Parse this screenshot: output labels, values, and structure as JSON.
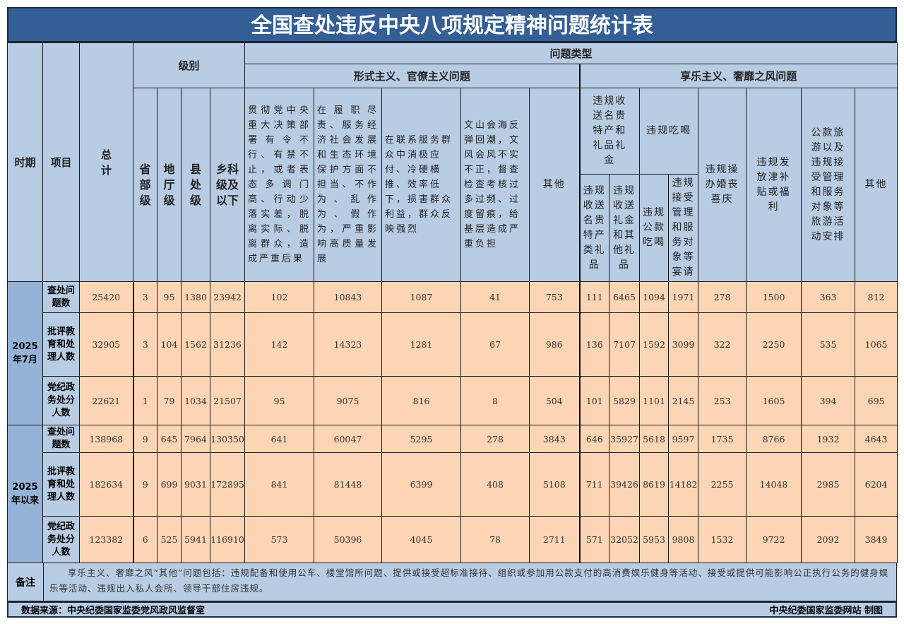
{
  "title": "全国查处违反中央八项规定精神问题统计表",
  "header": {
    "period": "时期",
    "item": "项目",
    "total": "总计",
    "level": "级别",
    "levels": [
      "省部级",
      "地厅级",
      "县处级",
      "乡科级及以下"
    ],
    "problem_type": "问题类型",
    "group1": "形式主义、官僚主义问题",
    "group1_cols": [
      "贯彻党中央重大决策部署有令不行、有禁不止，或者表态多调门高、行动少落实差，脱离实际、脱离群众，造成严重后果",
      "在履职尽责、服务经济社会发展和生态环境保护方面不担当、不作为、乱作为、假作为，严重影响高质量发展",
      "在联系服务群众中消极应付、冷硬横推、效率低下，损害群众利益，群众反映强烈",
      "文山会海反弹回潮，文风会风不实不正，督查检查考核过多过频、过度留痕，给基层造成严重负担",
      "其他"
    ],
    "group2": "享乐主义、奢靡之风问题",
    "gifts": "违规收送名贵特产和礼品礼金",
    "gifts_sub": [
      "违规收送名贵特产类礼品",
      "违规收送礼金和其他礼品"
    ],
    "dining": "违规吃喝",
    "dining_sub": [
      "违规公款吃喝",
      "违规接受管理和服务对象等宴请"
    ],
    "group2_cols": [
      "违规操办婚丧喜庆",
      "违规发放津补贴或福利",
      "公款旅游以及违规接受管理和服务对象等旅游活动安排",
      "其他"
    ]
  },
  "periods": [
    {
      "label": "2025年7月",
      "rows": [
        {
          "item": "查处问题数",
          "values": [
            "25420",
            "3",
            "95",
            "1380",
            "23942",
            "102",
            "10843",
            "1087",
            "41",
            "753",
            "111",
            "6465",
            "1094",
            "1971",
            "278",
            "1500",
            "363",
            "812"
          ]
        },
        {
          "item": "批评教育和处理人数",
          "values": [
            "32905",
            "3",
            "104",
            "1562",
            "31236",
            "142",
            "14323",
            "1281",
            "67",
            "986",
            "136",
            "7107",
            "1592",
            "3099",
            "322",
            "2250",
            "535",
            "1065"
          ]
        },
        {
          "item": "党纪政务处分人数",
          "values": [
            "22621",
            "1",
            "79",
            "1034",
            "21507",
            "95",
            "9075",
            "816",
            "8",
            "504",
            "101",
            "5829",
            "1101",
            "2145",
            "253",
            "1605",
            "394",
            "695"
          ]
        }
      ]
    },
    {
      "label": "2025年以来",
      "rows": [
        {
          "item": "查处问题数",
          "values": [
            "138968",
            "9",
            "645",
            "7964",
            "130350",
            "641",
            "60047",
            "5295",
            "278",
            "3843",
            "646",
            "35927",
            "5618",
            "9597",
            "1735",
            "8766",
            "1932",
            "4643"
          ]
        },
        {
          "item": "批评教育和处理人数",
          "values": [
            "182634",
            "9",
            "699",
            "9031",
            "172895",
            "841",
            "81448",
            "6399",
            "408",
            "5108",
            "711",
            "39426",
            "8619",
            "14182",
            "2255",
            "14048",
            "2985",
            "6204"
          ]
        },
        {
          "item": "党纪政务处分人数",
          "values": [
            "123382",
            "6",
            "525",
            "5941",
            "116910",
            "573",
            "50396",
            "4045",
            "78",
            "2711",
            "571",
            "32052",
            "5953",
            "9808",
            "1532",
            "9722",
            "2092",
            "3849"
          ]
        }
      ]
    }
  ],
  "note": {
    "label": "备注",
    "text": "享乐主义、奢靡之风“其他”问题包括：违规配备和使用公车、楼堂馆所问题、提供或接受超标准接待、组织或参加用公款支付的高消费娱乐健身等活动、接受或提供可能影响公正执行公务的健身娱乐等活动、违规出入私人会所、领导干部住房违规。"
  },
  "footer": {
    "source": "数据来源：中央纪委国家监委党风政风监督室",
    "credit": "中央纪委国家监委网站 制图"
  },
  "colors": {
    "title_bg": "#345f96",
    "header_bg": "#b8cce4",
    "period_bg": "#95b3d7",
    "data_bg": "#fcd5b4"
  }
}
